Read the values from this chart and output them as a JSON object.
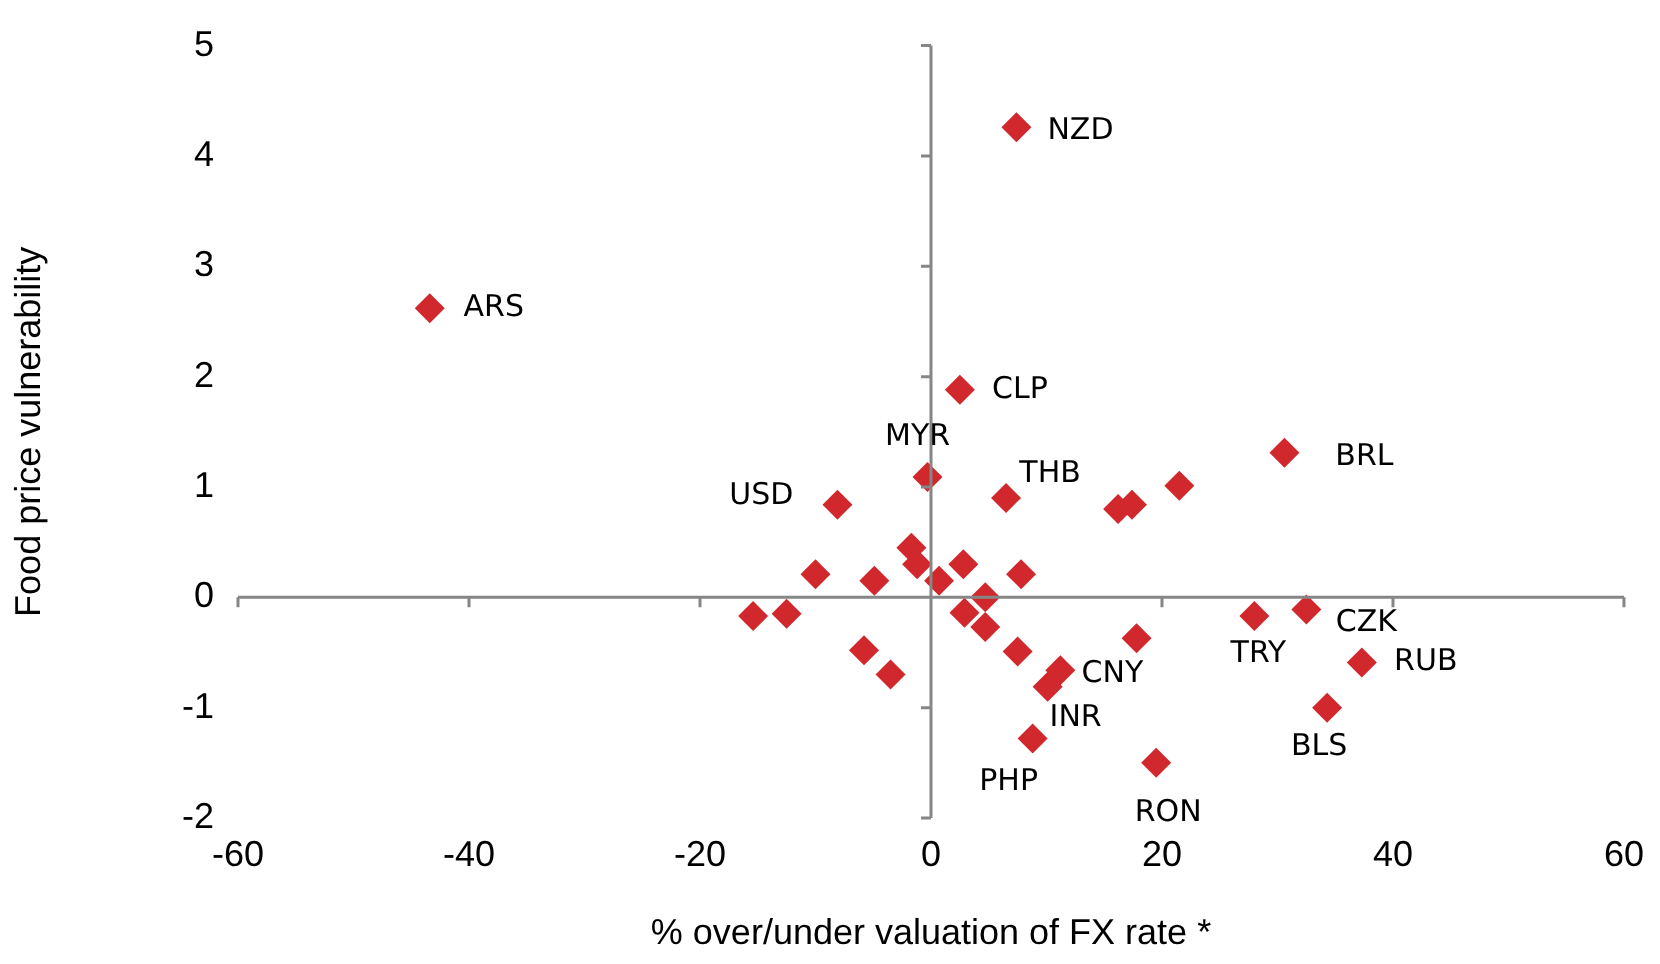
{
  "chart_data": {
    "type": "scatter",
    "xlabel": "% over/under valuation of FX rate *",
    "ylabel": "Food price vulnerability",
    "xlim": [
      -60,
      60
    ],
    "xticks": [
      -60,
      -40,
      -20,
      0,
      20,
      40,
      60
    ],
    "ylim": [
      -2,
      5
    ],
    "yticks": [
      -2,
      -1,
      0,
      1,
      2,
      3,
      4,
      5
    ],
    "legend": false,
    "marker": "diamond",
    "series": [
      {
        "color": "#d0282d",
        "x": [
          7.4,
          -43.4,
          2.5,
          -0.3,
          6.5,
          -8.1,
          16.2,
          17.4,
          21.5,
          30.6,
          -1.7,
          -1.2,
          -10,
          -4.9,
          0.7,
          2.8,
          7.8,
          4.7,
          2.9,
          4.7,
          -15.4,
          -12.5,
          -5.8,
          -3.5,
          7.5,
          11.2,
          10.1,
          8.8,
          17.8,
          19.5,
          28,
          32.5,
          37.3,
          34.3
        ],
        "values": [
          4.26,
          2.62,
          1.88,
          1.09,
          0.9,
          0.84,
          0.8,
          0.84,
          1.01,
          1.31,
          0.45,
          0.3,
          0.21,
          0.15,
          0.15,
          0.3,
          0.21,
          0.0,
          -0.14,
          -0.27,
          -0.17,
          -0.15,
          -0.48,
          -0.7,
          -0.49,
          -0.66,
          -0.81,
          -1.28,
          -0.37,
          -1.5,
          -0.17,
          -0.11,
          -0.59,
          -1.0
        ]
      }
    ],
    "annotations": [
      {
        "text": "NZD",
        "x": 7.4,
        "y": 4.26
      },
      {
        "text": "ARS",
        "x": -43.4,
        "y": 2.62
      },
      {
        "text": "CLP",
        "x": 2.5,
        "y": 1.88
      },
      {
        "text": "MYR",
        "x": -0.3,
        "y": 1.09
      },
      {
        "text": "THB",
        "x": 6.5,
        "y": 0.9
      },
      {
        "text": "USD",
        "x": -8.1,
        "y": 0.84
      },
      {
        "text": "BRL",
        "x": 30.6,
        "y": 1.31
      },
      {
        "text": "CNY",
        "x": 11.2,
        "y": -0.66
      },
      {
        "text": "INR",
        "x": 10.1,
        "y": -0.81
      },
      {
        "text": "PHP",
        "x": 8.8,
        "y": -1.28
      },
      {
        "text": "RON",
        "x": 19.5,
        "y": -1.5
      },
      {
        "text": "TRY",
        "x": 28,
        "y": -0.17
      },
      {
        "text": "CZK",
        "x": 32.5,
        "y": -0.11
      },
      {
        "text": "RUB",
        "x": 37.3,
        "y": -0.59
      },
      {
        "text": "BLS",
        "x": 34.3,
        "y": -1.0
      }
    ]
  }
}
